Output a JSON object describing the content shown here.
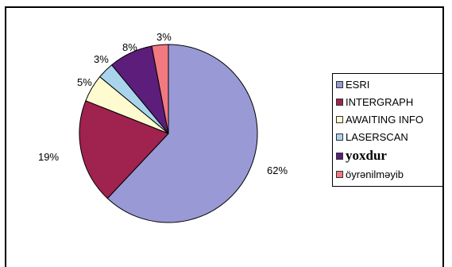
{
  "chart_data": {
    "type": "pie",
    "categories": [
      "ESRI",
      "INTERGRAPH",
      "AWAITING INFO",
      "LASERSCAN",
      "yoxdur",
      "öyrənilməyib"
    ],
    "values": [
      62,
      19,
      5,
      3,
      8,
      3
    ],
    "labels": [
      "62%",
      "19%",
      "5%",
      "3%",
      "8%",
      "3%"
    ],
    "colors": [
      "#9999d6",
      "#a0224e",
      "#fffbd0",
      "#a9d4ec",
      "#5c1e7a",
      "#f07a80"
    ],
    "legend_position": "right"
  }
}
